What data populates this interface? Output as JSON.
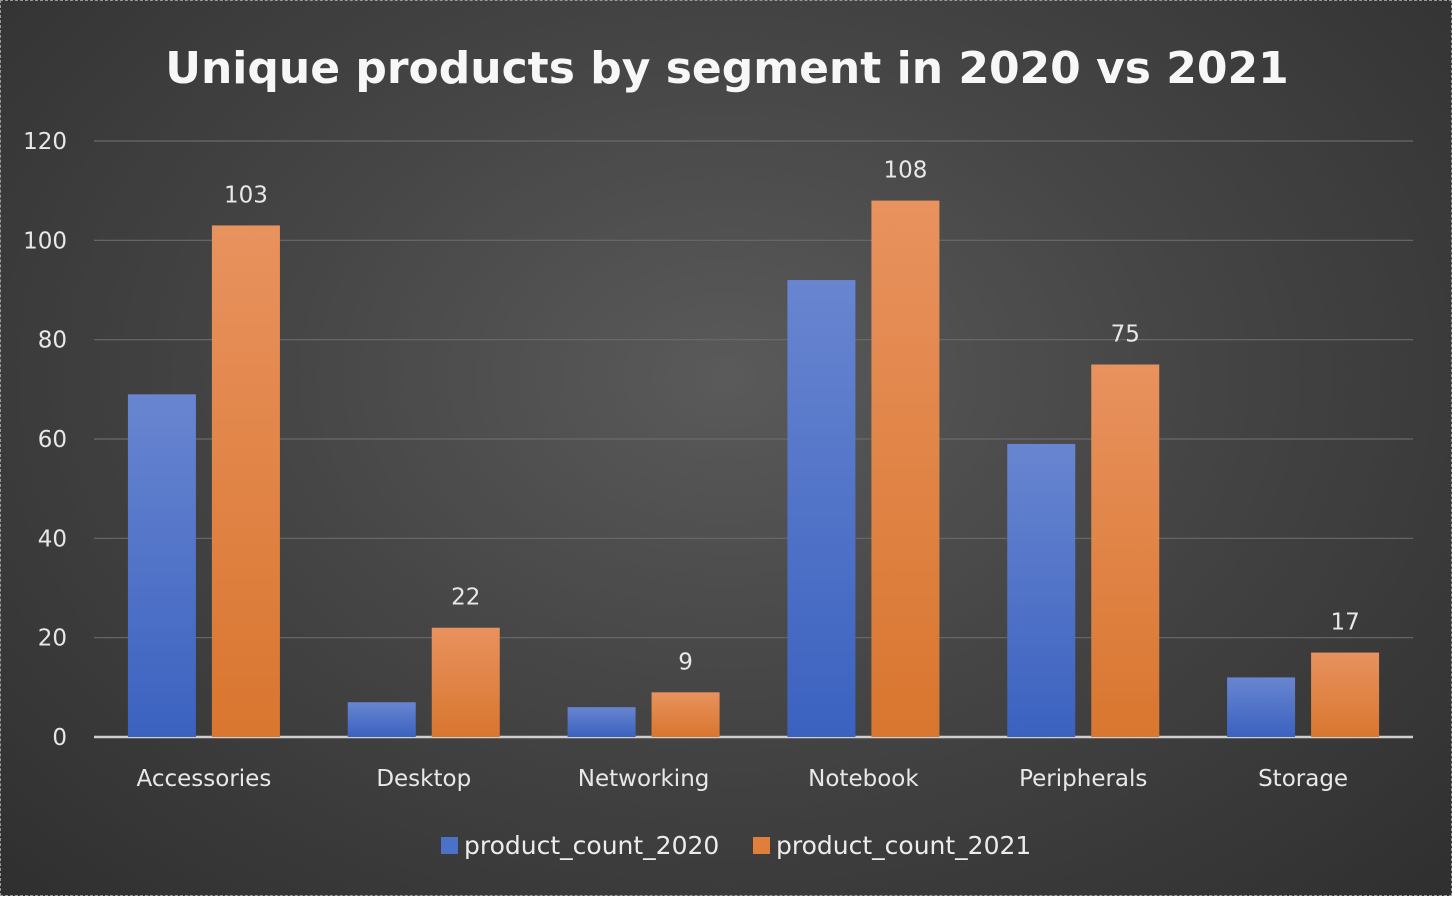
{
  "chart_data": {
    "type": "bar",
    "title": "Unique products by segment in 2020 vs 2021",
    "xlabel": "",
    "ylabel": "",
    "categories": [
      "Accessories",
      "Desktop",
      "Networking",
      "Notebook",
      "Peripherals",
      "Storage"
    ],
    "series": [
      {
        "name": "product_count_2020",
        "color": "#4a72c8",
        "values": [
          69,
          7,
          6,
          92,
          59,
          12
        ],
        "data_labels_shown": false
      },
      {
        "name": "product_count_2021",
        "color": "#e07e3c",
        "values": [
          103,
          22,
          9,
          108,
          75,
          17
        ],
        "data_labels_shown": true
      }
    ],
    "ylim": [
      0,
      120
    ],
    "yticks": [
      0,
      20,
      40,
      60,
      80,
      100,
      120
    ],
    "grid": true,
    "legend_position": "bottom"
  },
  "colors": {
    "background": "#454545",
    "series_2020": "#4a72c8",
    "series_2021": "#e07e3c"
  }
}
